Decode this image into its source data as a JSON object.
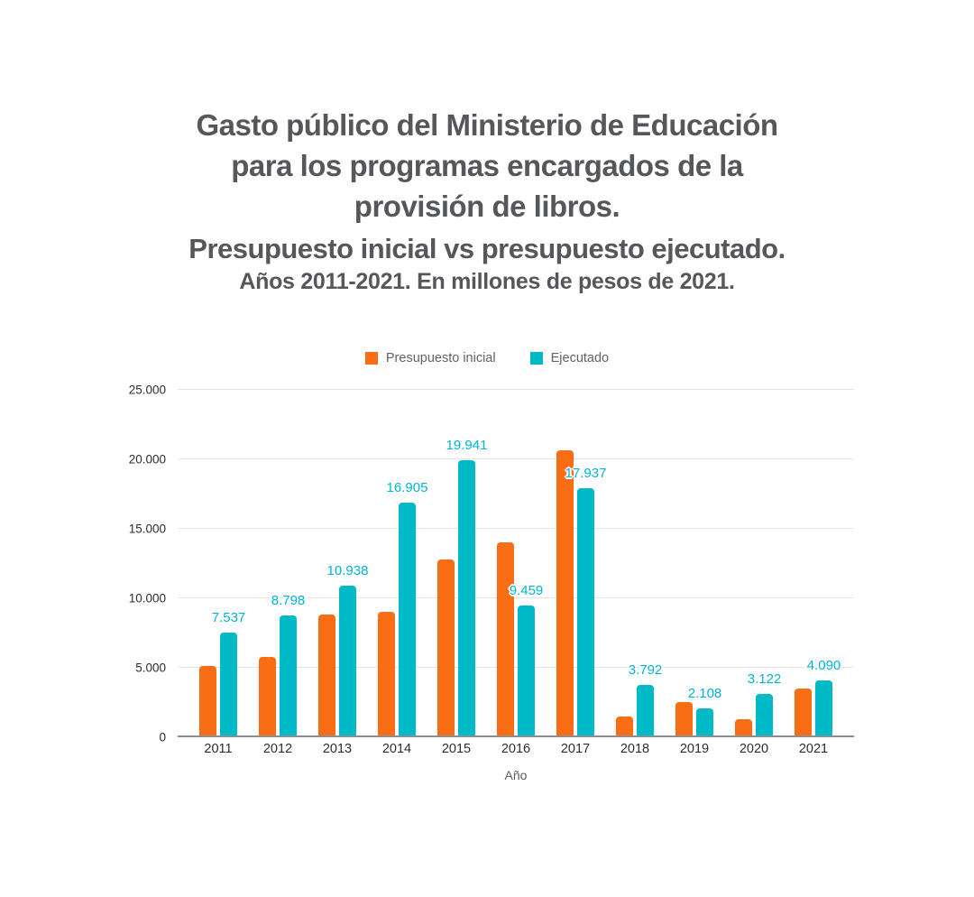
{
  "header": {
    "title_lines": [
      "Gasto público del Ministerio de Educación",
      "para los programas encargados de la",
      "provisión de libros."
    ],
    "subtitle": "Presupuesto inicial vs presupuesto ejecutado.",
    "caption": "Años 2011-2021. En millones de pesos de 2021."
  },
  "colors": {
    "title_text": "#56575b",
    "tick_text": "#2d2d2d",
    "gridline": "#e4e4e4",
    "axis_line": "#8d9197",
    "background": "#ffffff"
  },
  "chart_data": {
    "type": "bar",
    "title": "Gasto público del Ministerio de Educación para los programas encargados de la provisión de libros. Presupuesto inicial vs presupuesto ejecutado. Años 2011-2021. En millones de pesos de 2021.",
    "xlabel": "Año",
    "ylabel": "",
    "categories": [
      "2011",
      "2012",
      "2013",
      "2014",
      "2015",
      "2016",
      "2017",
      "2018",
      "2019",
      "2020",
      "2021"
    ],
    "series": [
      {
        "name": "Presupuesto inicial",
        "color": "#f96e14",
        "values": [
          5110,
          5800,
          8800,
          9020,
          12790,
          14030,
          20650,
          1470,
          2550,
          1320,
          3490
        ]
      },
      {
        "name": "Ejecutado",
        "color": "#00bac8",
        "label_color": "#00b4d4",
        "values": [
          7537,
          8798,
          10938,
          16905,
          19941,
          9459,
          17937,
          3792,
          2108,
          3122,
          4090
        ],
        "labels": [
          "7.537",
          "8.798",
          "10.938",
          "16.905",
          "19.941",
          "9.459",
          "17.937",
          "3.792",
          "2.108",
          "3.122",
          "4.090"
        ]
      }
    ],
    "ylim": [
      0,
      25000
    ],
    "yticks": [
      {
        "value": 0,
        "label": "0"
      },
      {
        "value": 5000,
        "label": "5.000"
      },
      {
        "value": 10000,
        "label": "10.000"
      },
      {
        "value": 15000,
        "label": "15.000"
      },
      {
        "value": 20000,
        "label": "20.000"
      },
      {
        "value": 25000,
        "label": "25.000"
      }
    ],
    "grid": true,
    "legend_position": "top"
  }
}
